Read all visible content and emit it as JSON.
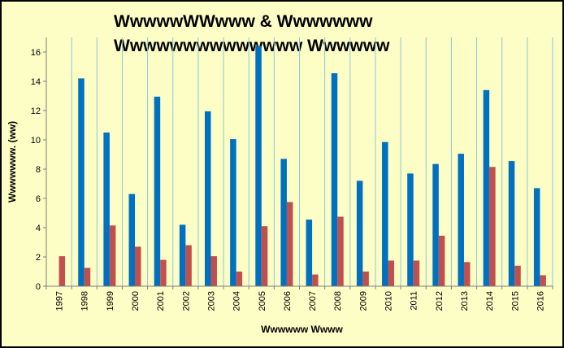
{
  "chart_data": {
    "type": "bar",
    "title_line1": "WwwwwWWwww & Wwwwwww",
    "title_line2": "Wwwwwwwwwwwwww Wwwwww",
    "xlabel": "Wwwwww Wwww",
    "ylabel": "Wwwwwww. (ww)",
    "categories": [
      "1997",
      "1998",
      "1999",
      "2000",
      "2001",
      "2002",
      "2003",
      "2004",
      "2005",
      "2006",
      "2007",
      "2008",
      "2009",
      "2010",
      "2011",
      "2012",
      "2013",
      "2014",
      "2015",
      "2016"
    ],
    "series": [
      {
        "values": [
          0,
          14.2,
          10.5,
          6.3,
          12.95,
          4.2,
          11.95,
          10.05,
          16.4,
          8.7,
          4.55,
          14.55,
          7.2,
          9.85,
          7.7,
          8.35,
          9.05,
          13.4,
          8.55,
          6.7
        ],
        "color": "#0070c0"
      },
      {
        "values": [
          2.05,
          1.25,
          4.15,
          2.7,
          1.8,
          2.8,
          2.05,
          1.0,
          4.1,
          5.75,
          0.8,
          4.75,
          1.0,
          1.75,
          1.75,
          3.45,
          1.65,
          8.15,
          1.4,
          0.75
        ],
        "color": "#c0504d"
      }
    ],
    "ylim": [
      0,
      17
    ],
    "yticks": [
      0,
      2,
      4,
      6,
      8,
      10,
      12,
      14,
      16
    ],
    "grid": "vertical",
    "gridColor": "#8cc8dc"
  }
}
